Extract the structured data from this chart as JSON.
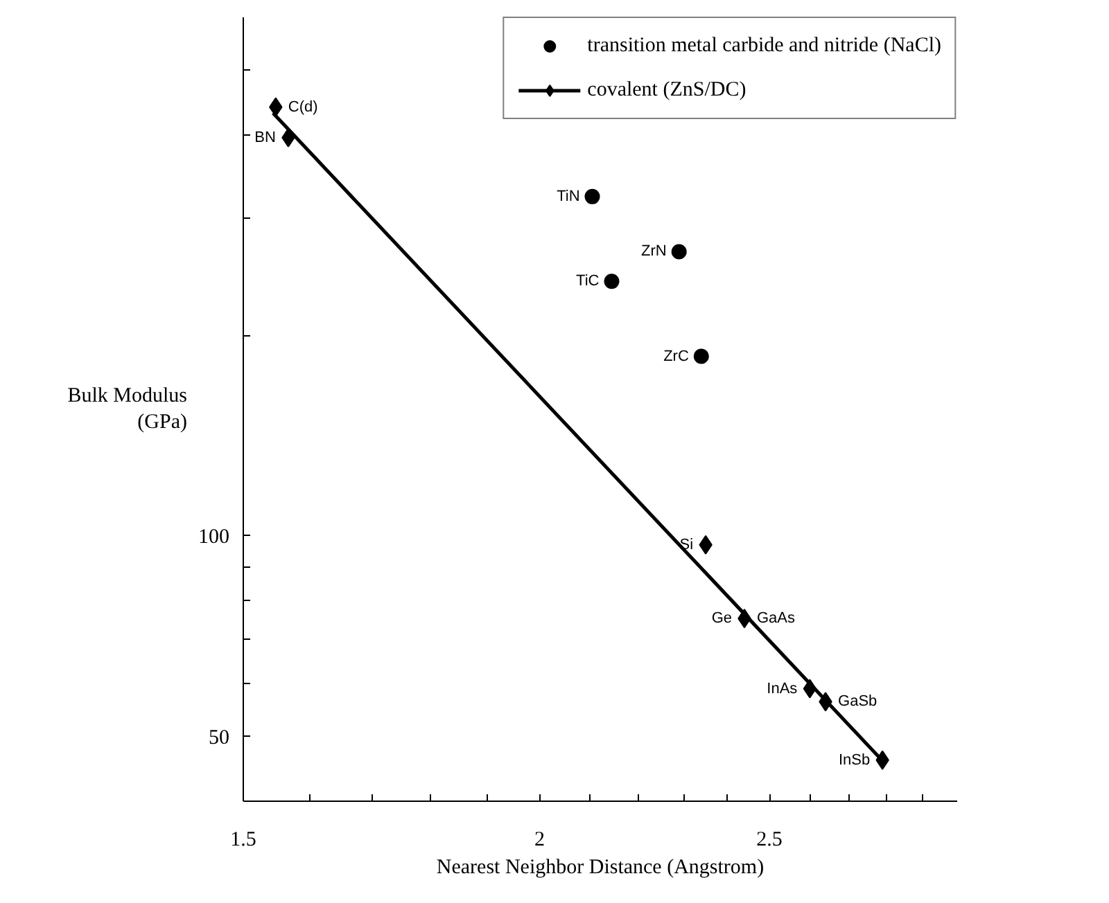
{
  "chart_data": {
    "type": "scatter",
    "xlabel": "Nearest Neighbor Distance (Angstrom)",
    "ylabel": "Bulk Modulus\n(GPa)",
    "log": "xy",
    "grid": false,
    "legend": "top right",
    "xlim": [
      1.5,
      3.0
    ],
    "xticks": [
      1.5,
      {
        "value": 1.6,
        "label": null
      },
      {
        "value": 1.7,
        "label": null
      },
      {
        "value": 1.8,
        "label": null
      },
      {
        "value": 1.9,
        "label": null
      },
      2,
      {
        "value": 2.1,
        "label": null
      },
      {
        "value": 2.2,
        "label": null
      },
      {
        "value": 2.3,
        "label": null
      },
      {
        "value": 2.4,
        "label": null
      },
      2.5,
      {
        "value": 2.6,
        "label": null
      },
      {
        "value": 2.7,
        "label": null
      },
      {
        "value": 2.8,
        "label": null
      },
      {
        "value": 2.9,
        "label": null
      }
    ],
    "ylim": [
      40,
      600
    ],
    "yticks": [
      50,
      {
        "value": 60,
        "label": null
      },
      {
        "value": 70,
        "label": null
      },
      {
        "value": 80,
        "label": null
      },
      {
        "value": 90,
        "label": null
      },
      100,
      {
        "value": 200,
        "label": null
      },
      {
        "value": 300,
        "label": null
      },
      {
        "value": 400,
        "label": null
      },
      {
        "value": 500,
        "label": null
      }
    ],
    "series": [
      {
        "name": "transition metal carbide and nitride (NaCl)",
        "marker": "circle",
        "color": "#000000",
        "x": [
          2.105,
          2.29,
          2.145,
          2.34
        ],
        "values": [
          323,
          267,
          241,
          186
        ]
      },
      {
        "name": "covalent (ZnS/DC)",
        "marker": "diamond",
        "color": "#000000",
        "x": [
          1.548,
          1.567,
          2.35,
          2.44,
          2.6,
          2.64,
          2.79
        ],
        "values": [
          440,
          396,
          97,
          75.2,
          59,
          56.4,
          46.1
        ]
      },
      {
        "type": "line",
        "color": "#000000",
        "x": [
          1.544,
          2.79
        ],
        "values": [
          431,
          46
        ]
      }
    ],
    "annotations": [
      {
        "text": "C(d)",
        "x": 1.548,
        "y": 440
      },
      {
        "text": "BN",
        "x": 1.567,
        "y": 396
      },
      {
        "text": "TiN",
        "x": 2.105,
        "y": 323
      },
      {
        "text": "ZrN",
        "x": 2.29,
        "y": 267
      },
      {
        "text": "TiC",
        "x": 2.145,
        "y": 241
      },
      {
        "text": "ZrC",
        "x": 2.34,
        "y": 186
      },
      {
        "text": "Si",
        "x": 2.35,
        "y": 97
      },
      {
        "text": "Ge",
        "x": 2.44,
        "y": 75.2
      },
      {
        "text": "GaAs",
        "x": 2.44,
        "y": 75.2
      },
      {
        "text": "InAs",
        "x": 2.6,
        "y": 59
      },
      {
        "text": "GaSb",
        "x": 2.64,
        "y": 56.4
      },
      {
        "text": "InSb",
        "x": 2.79,
        "y": 46.1
      }
    ]
  }
}
